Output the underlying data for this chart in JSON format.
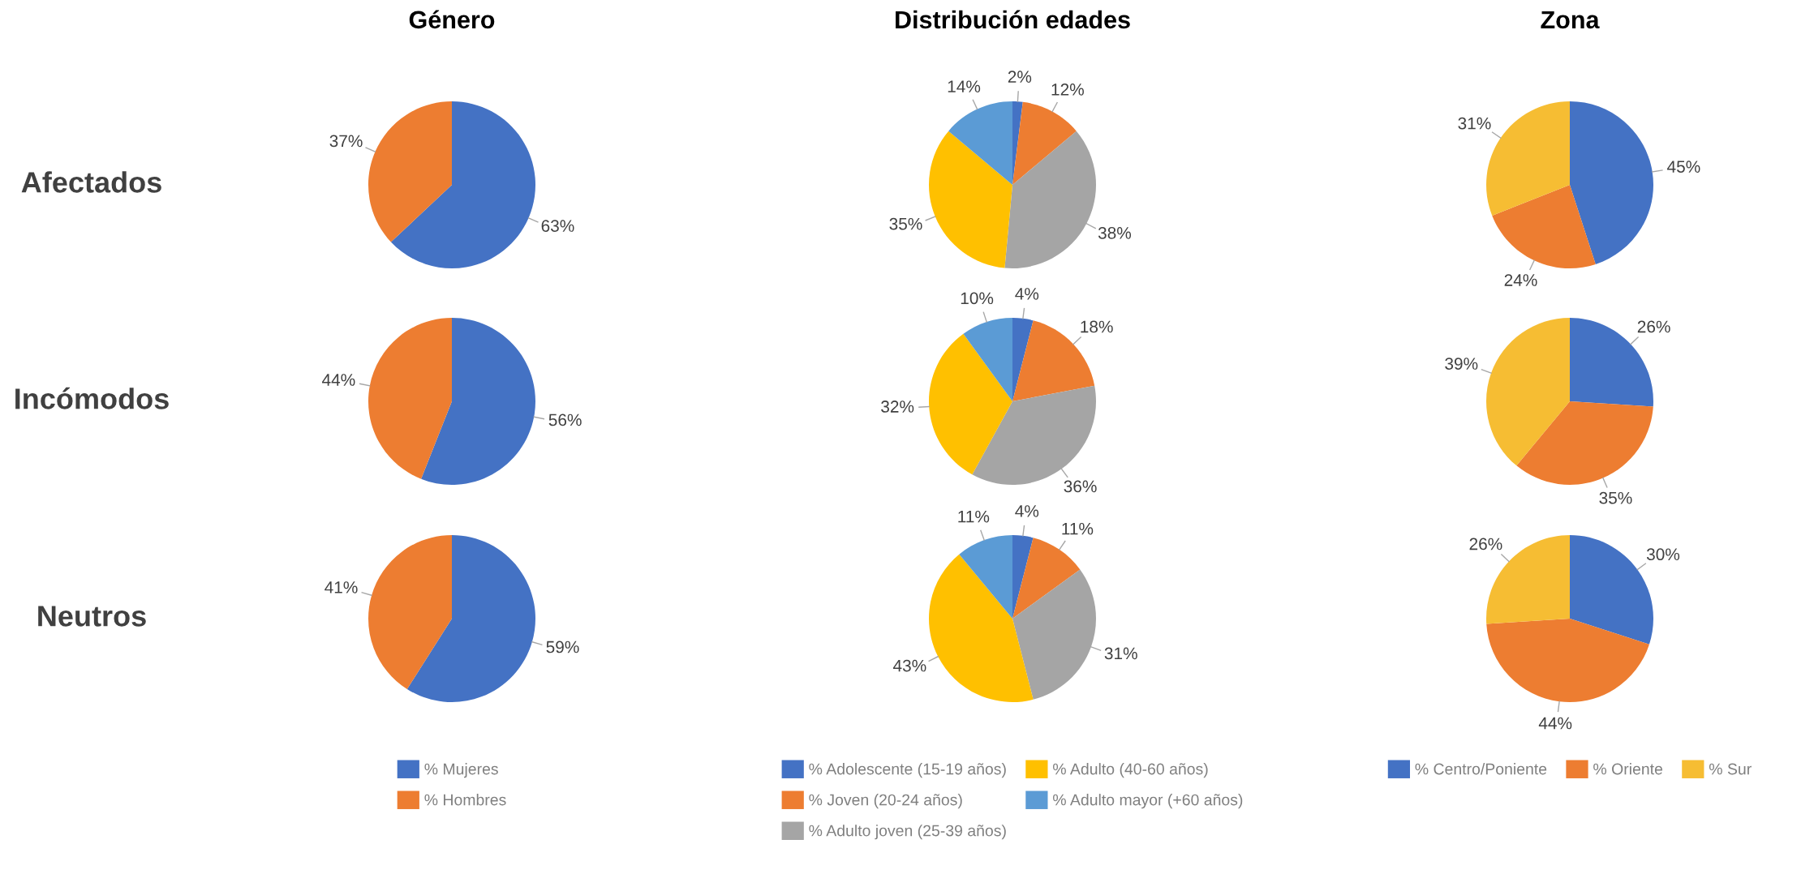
{
  "chart_data": [
    {
      "type": "pie",
      "title": "Género",
      "ylabel": "Afectados",
      "categories": [
        "% Mujeres",
        "% Hombres"
      ],
      "values": [
        63,
        37
      ],
      "value_labels": [
        "63%",
        "37%"
      ],
      "colors": [
        "#4472c4",
        "#ed7d31"
      ],
      "legend": "bottom"
    },
    {
      "type": "pie",
      "title": "Distribución edades",
      "categories": [
        "% Adolescente (15-19 años)",
        "% Joven (20-24 años)",
        "% Adulto joven (25-39 años)",
        "% Adulto (40-60 años)",
        "% Adulto mayor (+60 años)"
      ],
      "values": [
        2,
        12,
        38,
        35,
        14
      ],
      "value_labels": [
        "2%",
        "12%",
        "38%",
        "35%",
        "14%"
      ],
      "colors": [
        "#4472c4",
        "#ed7d31",
        "#a5a5a5",
        "#ffc000",
        "#5b9bd5"
      ],
      "legend": "bottom"
    },
    {
      "type": "pie",
      "title": "Zona",
      "categories": [
        "% Centro/Poniente",
        "% Oriente",
        "% Sur"
      ],
      "values": [
        45,
        24,
        31
      ],
      "value_labels": [
        "45%",
        "24%",
        "31%"
      ],
      "colors": [
        "#4472c4",
        "#ed7d31",
        "#f6bd33"
      ],
      "legend": "bottom"
    },
    {
      "type": "pie",
      "ylabel": "Incómodos",
      "values": [
        56,
        44
      ],
      "value_labels": [
        "56%",
        "44%"
      ],
      "colors": [
        "#4472c4",
        "#ed7d31"
      ]
    },
    {
      "type": "pie",
      "values": [
        4,
        18,
        36,
        32,
        10
      ],
      "value_labels": [
        "4%",
        "18%",
        "36%",
        "32%",
        "10%"
      ],
      "colors": [
        "#4472c4",
        "#ed7d31",
        "#a5a5a5",
        "#ffc000",
        "#5b9bd5"
      ]
    },
    {
      "type": "pie",
      "values": [
        26,
        35,
        39
      ],
      "value_labels": [
        "26%",
        "35%",
        "39%"
      ],
      "colors": [
        "#4472c4",
        "#ed7d31",
        "#f6bd33"
      ]
    },
    {
      "type": "pie",
      "ylabel": "Neutros",
      "values": [
        59,
        41
      ],
      "value_labels": [
        "59%",
        "41%"
      ],
      "colors": [
        "#4472c4",
        "#ed7d31"
      ]
    },
    {
      "type": "pie",
      "values": [
        4,
        11,
        31,
        43,
        11
      ],
      "value_labels": [
        "4%",
        "11%",
        "31%",
        "43%",
        "11%"
      ],
      "colors": [
        "#4472c4",
        "#ed7d31",
        "#a5a5a5",
        "#ffc000",
        "#5b9bd5"
      ]
    },
    {
      "type": "pie",
      "values": [
        30,
        44,
        26
      ],
      "value_labels": [
        "30%",
        "44%",
        "26%"
      ],
      "colors": [
        "#4472c4",
        "#ed7d31",
        "#f6bd33"
      ]
    }
  ]
}
